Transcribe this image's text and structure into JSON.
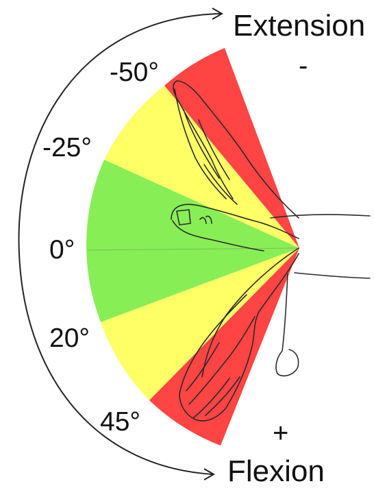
{
  "labels": {
    "extension": "Extension",
    "extension_sign": "-",
    "flexion": "Flexion",
    "flexion_sign": "+"
  },
  "angle_labels": [
    "-50°",
    "-25°",
    "0°",
    "20°",
    "45°"
  ],
  "zones": [
    {
      "name": "extension-red",
      "from_deg": -50,
      "to_deg": -25,
      "color": "#ff4444"
    },
    {
      "name": "extension-yellow",
      "from_deg": -25,
      "to_deg": -10,
      "color": "#ffff66"
    },
    {
      "name": "neutral-green",
      "from_deg": -10,
      "to_deg": 10,
      "color": "#88ee55"
    },
    {
      "name": "flexion-yellow",
      "from_deg": 10,
      "to_deg": 20,
      "color": "#ffff66"
    },
    {
      "name": "flexion-red",
      "from_deg": 20,
      "to_deg": 45,
      "color": "#ff4444"
    }
  ],
  "colors": {
    "red": "#ff4444",
    "yellow": "#ffff66",
    "green": "#88ee55",
    "line": "#222222"
  }
}
